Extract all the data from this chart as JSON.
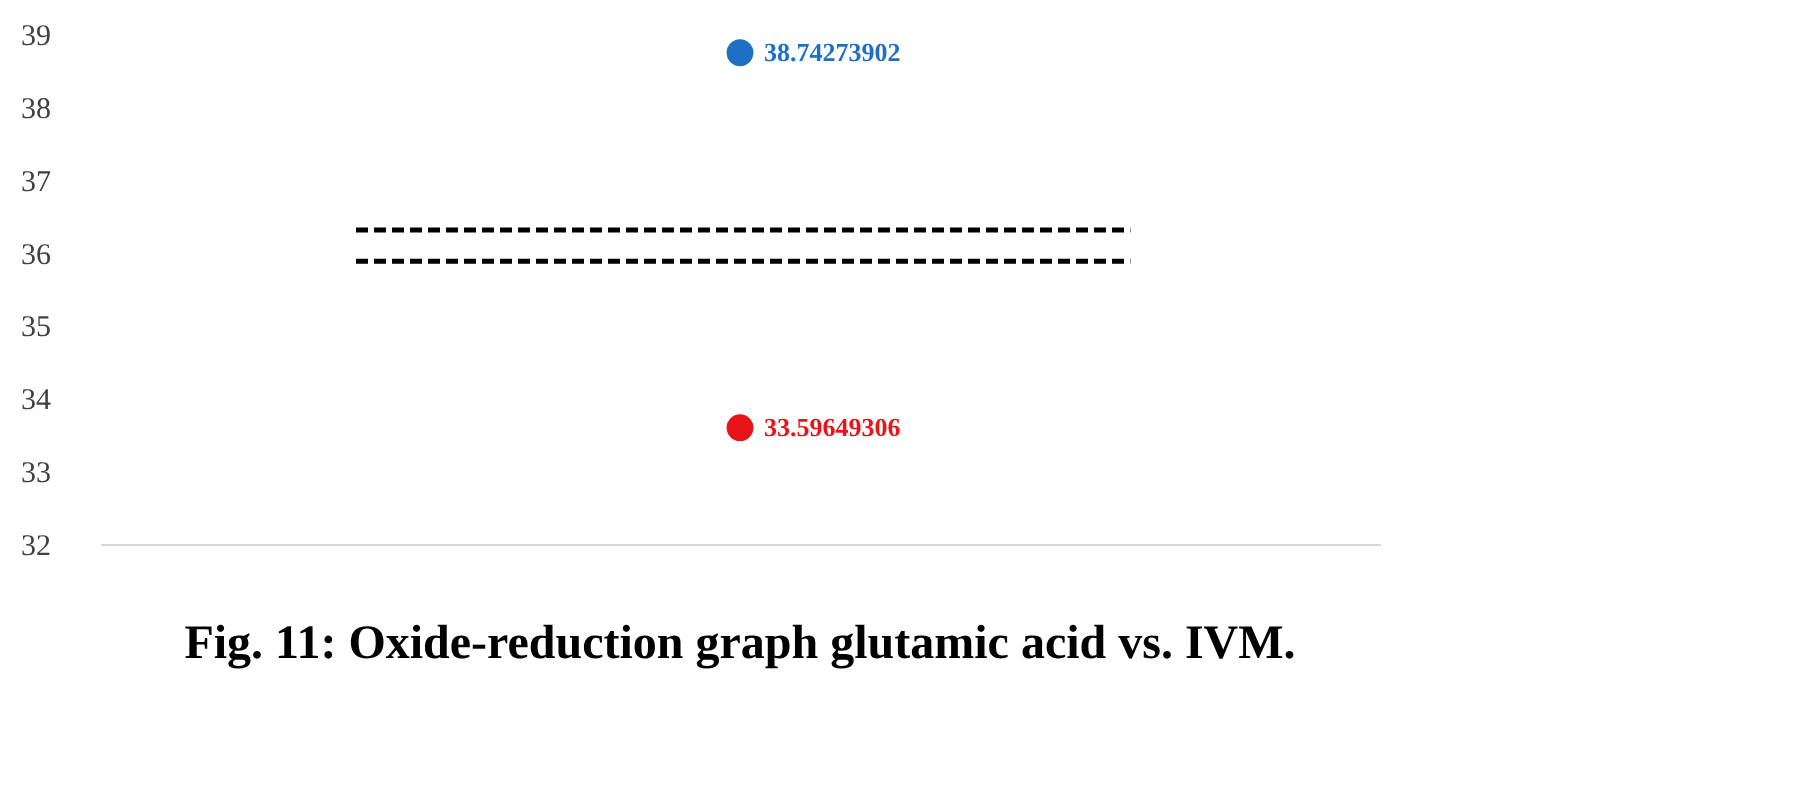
{
  "chart_data": {
    "type": "scatter",
    "categories": [
      null
    ],
    "series": [
      {
        "color": "#1f6fc5",
        "values": [
          38.74273902
        ]
      },
      {
        "color": "#e8141a",
        "values": [
          33.59649306
        ]
      }
    ],
    "data_labels": true,
    "ylim": [
      32,
      39
    ],
    "yticks": [
      32,
      33,
      34,
      35,
      36,
      37,
      38,
      39
    ],
    "ref_lines": [
      {
        "axis": "y",
        "value": 36.31,
        "color": "#000000",
        "line_style": "dashed"
      },
      {
        "axis": "y",
        "value": 35.88,
        "color": "#000000",
        "line_style": "dashed"
      }
    ],
    "grid": false,
    "tick_labels": "y",
    "marker": "circle",
    "annotations": [
      "Fig. 11: Oxide-reduction graph glutamic acid vs. IVM."
    ]
  }
}
